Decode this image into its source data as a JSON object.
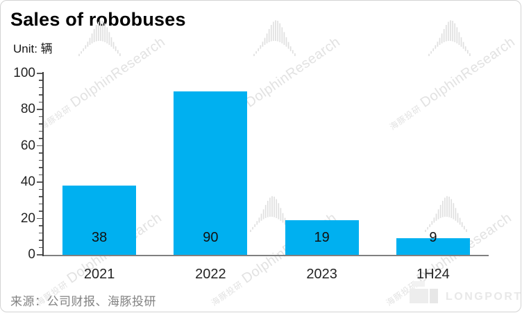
{
  "header": {
    "title": "Sales of robobuses",
    "unit_label": "Unit: 辆"
  },
  "chart_data": {
    "type": "bar",
    "title": "Sales of robobuses",
    "unit": "辆",
    "categories": [
      "2021",
      "2022",
      "2023",
      "1H24"
    ],
    "values": [
      38,
      90,
      19,
      9
    ],
    "data_labels": [
      "38",
      "90",
      "19",
      "9"
    ],
    "data_label_position": "inside-base",
    "xlabel": "",
    "ylabel": "",
    "ylim": [
      0,
      100
    ],
    "yticks": [
      0,
      20,
      40,
      60,
      80,
      100
    ],
    "minor_tick_step": 4,
    "grid": false,
    "legend": "none",
    "bar_color": "#00b0f0"
  },
  "watermark": {
    "cn": "海豚投研",
    "en": "DolphinResearch"
  },
  "footer": {
    "source_label": "来源：公司财报、海豚投研",
    "brand": "LONGPORT"
  },
  "colors": {
    "bar": "#00b0f0",
    "axis_line": "#3c3c3c",
    "x_axis_line": "#808080",
    "tick": "#5a5a5a",
    "axis_text": "#242424",
    "value_text": "#111111",
    "source_text": "#828282",
    "watermark": "#e2e2e2",
    "card_border": "#d3d3d3"
  }
}
